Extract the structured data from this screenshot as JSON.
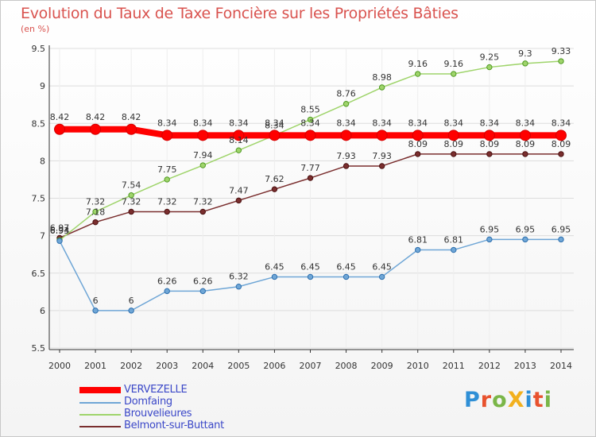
{
  "title": "Evolution du Taux de Taxe Foncière sur les Propriétés Bâties",
  "unit_label": "(en %)",
  "brand": "ProXiti",
  "brand_colors": [
    "#2f8fd6",
    "#e8522e",
    "#7ab648",
    "#f2b01e",
    "#2f8fd6",
    "#e8522e",
    "#7ab648"
  ],
  "chart_data": {
    "type": "line",
    "title": "Evolution du Taux de Taxe Foncière sur les Propriétés Bâties",
    "ylabel": "(en %)",
    "xlabel": "",
    "ylim": [
      5.5,
      9.5
    ],
    "yticks": [
      "5.5",
      "6",
      "6.5",
      "7",
      "7.5",
      "8",
      "8.5",
      "9",
      "9.5"
    ],
    "categories": [
      "2000",
      "2001",
      "2002",
      "2003",
      "2004",
      "2005",
      "2006",
      "2007",
      "2008",
      "2009",
      "2010",
      "2011",
      "2012",
      "2013",
      "2014"
    ],
    "grid": true,
    "legend": "bottom-left",
    "series": [
      {
        "name": "VERVEZELLE",
        "color": "#ff0000",
        "values": [
          8.42,
          8.42,
          8.42,
          8.34,
          8.34,
          8.34,
          8.34,
          8.34,
          8.34,
          8.34,
          8.34,
          8.34,
          8.34,
          8.34,
          8.34
        ],
        "labels": [
          "8.42",
          "8.42",
          "8.42",
          "8.34",
          "8.34",
          "8.34",
          "8.34",
          "8.34",
          "8.34",
          "8.34",
          "8.34",
          "8.34",
          "8.34",
          "8.34",
          "8.34"
        ]
      },
      {
        "name": "Domfaing",
        "color": "#6fa6d6",
        "values": [
          6.93,
          6,
          6,
          6.26,
          6.26,
          6.32,
          6.45,
          6.45,
          6.45,
          6.45,
          6.81,
          6.81,
          6.95,
          6.95,
          6.95
        ],
        "labels": [
          "6.93",
          "6",
          "6",
          "6.26",
          "6.26",
          "6.32",
          "6.45",
          "6.45",
          "6.45",
          "6.45",
          "6.81",
          "6.81",
          "6.95",
          "6.95",
          "6.95"
        ]
      },
      {
        "name": "Brouvelieures",
        "color": "#9fd46b",
        "values": [
          6.94,
          7.32,
          7.54,
          7.75,
          7.94,
          8.14,
          8.34,
          8.55,
          8.76,
          8.98,
          9.16,
          9.16,
          9.25,
          9.3,
          9.33
        ],
        "labels": [
          "6.94",
          "7.32",
          "7.54",
          "7.75",
          "7.94",
          "8.14",
          "8.34",
          "8.55",
          "8.76",
          "8.98",
          "9.16",
          "9.16",
          "9.25",
          "9.3",
          "9.33"
        ]
      },
      {
        "name": "Belmont-sur-Buttant",
        "color": "#7a2e2e",
        "values": [
          6.97,
          7.18,
          7.32,
          7.32,
          7.32,
          7.47,
          7.62,
          7.77,
          7.93,
          7.93,
          8.09,
          8.09,
          8.09,
          8.09,
          8.09
        ],
        "labels": [
          "6.97",
          "7.18",
          "7.32",
          "7.32",
          "7.32",
          "7.47",
          "7.62",
          "7.77",
          "7.93",
          "7.93",
          "8.09",
          "8.09",
          "8.09",
          "8.09",
          "8.09"
        ]
      }
    ]
  }
}
